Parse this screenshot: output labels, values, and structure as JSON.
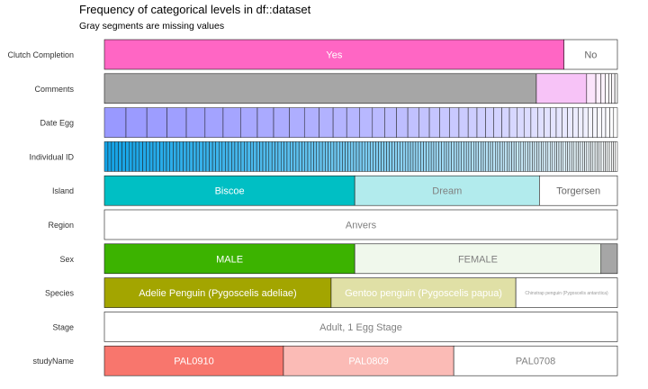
{
  "chart_data": {
    "type": "bar",
    "title": "Frequency of categorical levels in df::dataset",
    "subtitle": "Gray segments are missing values",
    "missing_color": "#a6a6a6",
    "rows": [
      {
        "name": "Clutch Completion",
        "segments": [
          {
            "label": "Yes",
            "share": 0.896,
            "fill": "#ff66c4",
            "text_color": "#ffffff"
          },
          {
            "label": "No",
            "share": 0.104,
            "fill": "#ffffff",
            "text_color": "#666666"
          }
        ]
      },
      {
        "name": "Comments",
        "segments": [
          {
            "label": "",
            "share": 0.842,
            "fill": "#a6a6a6",
            "missing": true
          },
          {
            "label": "",
            "share": 0.098,
            "fill": "#f7c3f7"
          },
          {
            "label": "",
            "share": 0.018,
            "fill": "#fbe4fb"
          },
          {
            "label": "",
            "share": 0.01,
            "fill": "#fceefc"
          },
          {
            "label": "",
            "share": 0.008,
            "fill": "#fdf3fd"
          },
          {
            "label": "",
            "share": 0.007,
            "fill": "#fef7fe"
          },
          {
            "label": "",
            "share": 0.006,
            "fill": "#fefafe"
          },
          {
            "label": "",
            "share": 0.006,
            "fill": "#fffcff"
          },
          {
            "label": "",
            "share": 0.005,
            "fill": "#ffffff"
          }
        ]
      },
      {
        "name": "Date Egg",
        "gradient": {
          "from": "#9999ff",
          "to": "#ffffff",
          "count": 50,
          "decay": 0.965
        }
      },
      {
        "name": "Individual ID",
        "gradient": {
          "from": "#14a3e6",
          "to": "#ffffff",
          "count": 190,
          "decay": 0.997
        }
      },
      {
        "name": "Island",
        "segments": [
          {
            "label": "Biscoe",
            "share": 0.488,
            "fill": "#00bfc4",
            "text_color": "#ffffff"
          },
          {
            "label": "Dream",
            "share": 0.36,
            "fill": "#b2ebed",
            "text_color": "#808080"
          },
          {
            "label": "Torgersen",
            "share": 0.152,
            "fill": "#ffffff",
            "text_color": "#666666"
          }
        ]
      },
      {
        "name": "Region",
        "segments": [
          {
            "label": "Anvers",
            "share": 1.0,
            "fill": "#ffffff",
            "text_color": "#808080"
          }
        ]
      },
      {
        "name": "Sex",
        "segments": [
          {
            "label": "MALE",
            "share": 0.488,
            "fill": "#3cb300",
            "text_color": "#ffffff"
          },
          {
            "label": "FEMALE",
            "share": 0.48,
            "fill": "#f0f8ec",
            "text_color": "#808080"
          },
          {
            "label": "",
            "share": 0.032,
            "fill": "#a6a6a6",
            "missing": true
          }
        ]
      },
      {
        "name": "Species",
        "segments": [
          {
            "label": "Adelie Penguin (Pygoscelis adeliae)",
            "share": 0.442,
            "fill": "#a3a500",
            "text_color": "#ffffff"
          },
          {
            "label": "Gentoo penguin (Pygoscelis papua)",
            "share": 0.36,
            "fill": "#e0e0a6",
            "text_color": "#ffffff"
          },
          {
            "label": "Chinstrap penguin (Pygoscelis antarctica)",
            "share": 0.198,
            "fill": "#ffffff",
            "text_color": "#999999",
            "small": true
          }
        ]
      },
      {
        "name": "Stage",
        "segments": [
          {
            "label": "Adult, 1 Egg Stage",
            "share": 1.0,
            "fill": "#ffffff",
            "text_color": "#808080"
          }
        ]
      },
      {
        "name": "studyName",
        "segments": [
          {
            "label": "PAL0910",
            "share": 0.349,
            "fill": "#f8766d",
            "text_color": "#ffffff"
          },
          {
            "label": "PAL0809",
            "share": 0.332,
            "fill": "#fbbbb6",
            "text_color": "#ffffff"
          },
          {
            "label": "PAL0708",
            "share": 0.319,
            "fill": "#ffffff",
            "text_color": "#808080"
          }
        ]
      }
    ]
  }
}
